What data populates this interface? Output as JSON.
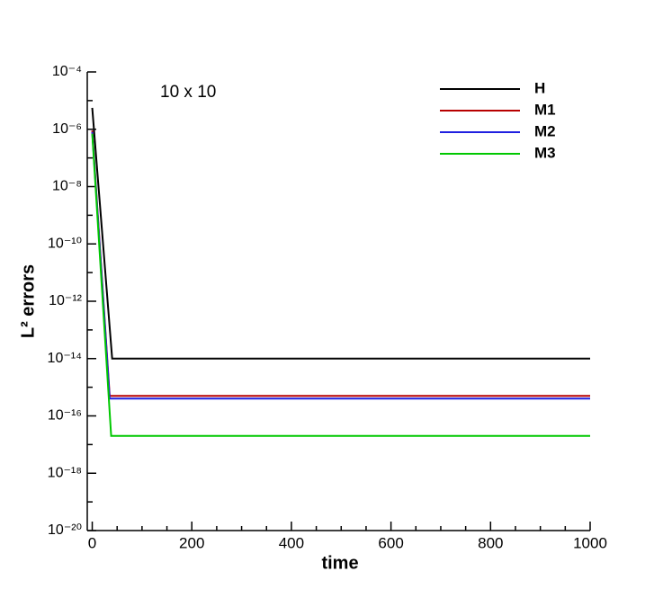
{
  "chart_data": {
    "type": "line",
    "annotation": "10 x 10",
    "xlabel": "time",
    "ylabel": "L² errors",
    "ylog": true,
    "xlim": [
      -10,
      1000
    ],
    "xticks": [
      0,
      200,
      400,
      600,
      800,
      1000
    ],
    "ylim": [
      1e-20,
      0.0001
    ],
    "yticks": [
      {
        "value": 1e-20,
        "label": "10⁻²⁰"
      },
      {
        "value": 1e-18,
        "label": "10⁻¹⁸"
      },
      {
        "value": 1e-16,
        "label": "10⁻¹⁶"
      },
      {
        "value": 1e-14,
        "label": "10⁻¹⁴"
      },
      {
        "value": 1e-12,
        "label": "10⁻¹²"
      },
      {
        "value": 1e-10,
        "label": "10⁻¹⁰"
      },
      {
        "value": 1e-08,
        "label": "10⁻⁸"
      },
      {
        "value": 1e-06,
        "label": "10⁻⁶"
      },
      {
        "value": 0.0001,
        "label": "10⁻⁴"
      }
    ],
    "series": [
      {
        "name": "H",
        "color": "#000000",
        "x": [
          0,
          40,
          1000
        ],
        "values": [
          5.6e-06,
          1e-14,
          1e-14
        ]
      },
      {
        "name": "M1",
        "color": "#b80000",
        "x": [
          0,
          35,
          1000
        ],
        "values": [
          9e-07,
          5e-16,
          5e-16
        ]
      },
      {
        "name": "M2",
        "color": "#2020e0",
        "x": [
          0,
          35,
          1000
        ],
        "values": [
          8e-07,
          4e-16,
          4e-16
        ]
      },
      {
        "name": "M3",
        "color": "#00c800",
        "x": [
          0,
          38,
          1000
        ],
        "values": [
          7e-07,
          2e-17,
          2e-17
        ]
      }
    ]
  }
}
